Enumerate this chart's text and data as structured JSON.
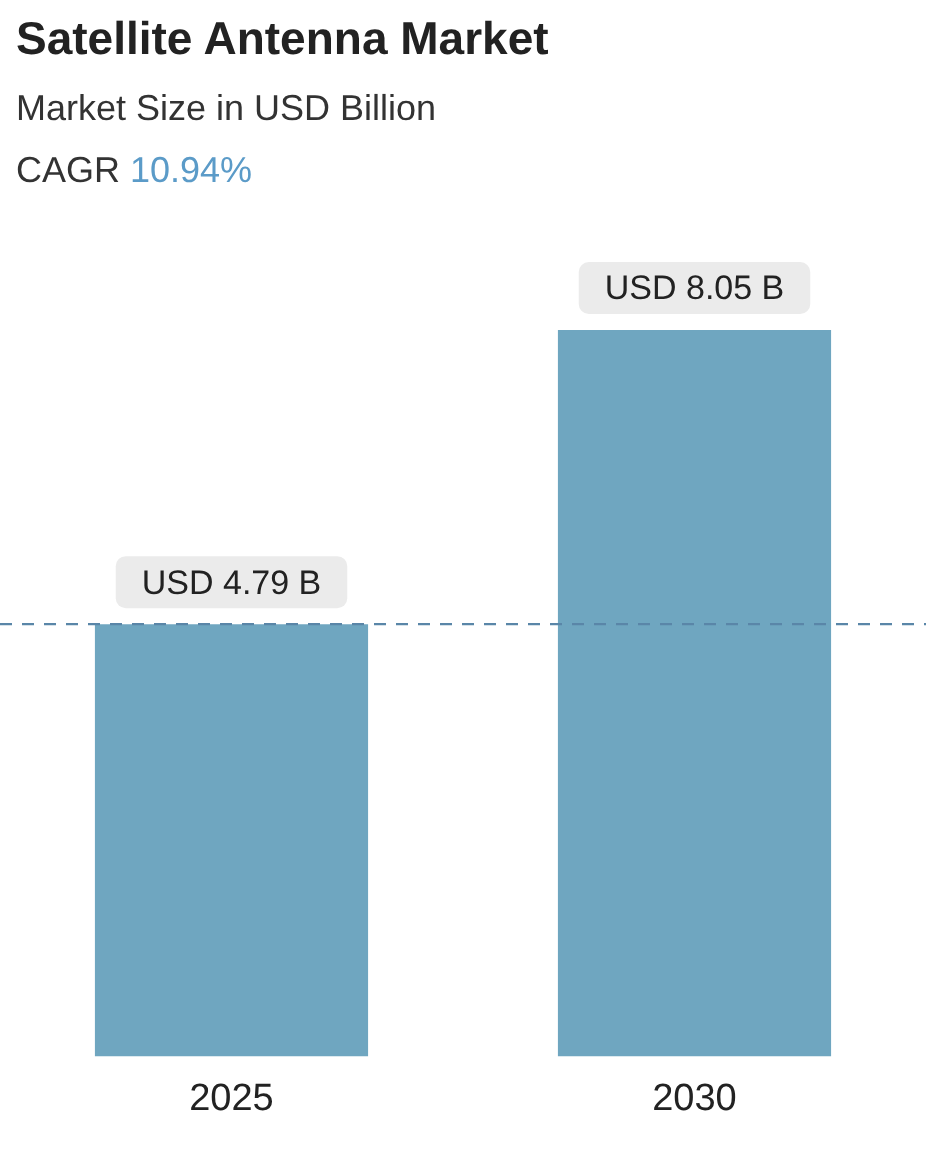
{
  "chart_data": {
    "type": "bar",
    "title": "Satellite Antenna Market",
    "subtitle": "Market Size in USD Billion",
    "annotations": [
      "CAGR 10.94%"
    ],
    "categories": [
      "2025",
      "2030"
    ],
    "values": [
      4.79,
      8.05
    ],
    "color": "#6fa6c0",
    "value_labels": [
      "USD 4.79 B",
      "USD 8.05 B"
    ],
    "ref_lines": [
      {
        "axis": "y",
        "value": 4.79,
        "color": "#5a86a8",
        "line_style": "dashed"
      }
    ],
    "grid": false,
    "legend": false
  }
}
